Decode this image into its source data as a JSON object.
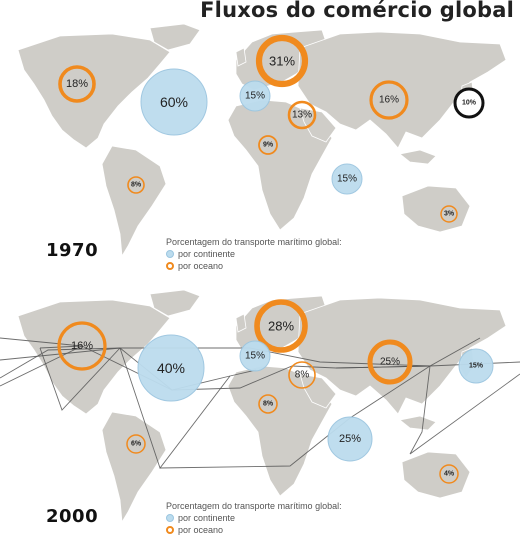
{
  "title": "Fluxos do comércio global",
  "legend": {
    "title": "Porcentagem do transporte marítimo global:",
    "continent": "por continente",
    "ocean": "por oceano"
  },
  "colors": {
    "land": "#cfcdc8",
    "continent_fill": "#bcdcee",
    "continent_stroke": "#9cc6e0",
    "ocean_ring": "#f08a1e",
    "route": "#555555"
  },
  "maps": [
    {
      "year": "1970",
      "bubbles": [
        {
          "label": "18%",
          "kind": "ocean",
          "value": 18,
          "region": "North Atlantic (North America)"
        },
        {
          "label": "31%",
          "kind": "ocean",
          "value": 31,
          "region": "Northern Europe"
        },
        {
          "label": "60%",
          "kind": "continent",
          "value": 60,
          "region": "Atlantic / Europe"
        },
        {
          "label": "15%",
          "kind": "continent",
          "value": 15,
          "region": "Mediterranean"
        },
        {
          "label": "13%",
          "kind": "ocean",
          "value": 13,
          "region": "Middle East"
        },
        {
          "label": "16%",
          "kind": "ocean",
          "value": 16,
          "region": "Asia"
        },
        {
          "label": "10%",
          "kind": "highlight",
          "value": 10,
          "region": "Japan"
        },
        {
          "label": "9%",
          "kind": "ocean",
          "value": 9,
          "region": "Red Sea"
        },
        {
          "label": "15%",
          "kind": "continent",
          "value": 15,
          "region": "Indian Ocean"
        },
        {
          "label": "8%",
          "kind": "ocean",
          "value": 8,
          "region": "South America"
        },
        {
          "label": "3%",
          "kind": "ocean",
          "value": 3,
          "region": "Australia"
        }
      ]
    },
    {
      "year": "2000",
      "bubbles": [
        {
          "label": "16%",
          "kind": "ocean",
          "value": 16,
          "region": "North America"
        },
        {
          "label": "28%",
          "kind": "ocean",
          "value": 28,
          "region": "Europe"
        },
        {
          "label": "40%",
          "kind": "continent",
          "value": 40,
          "region": "Atlantic"
        },
        {
          "label": "15%",
          "kind": "continent",
          "value": 15,
          "region": "Mediterranean"
        },
        {
          "label": "8%",
          "kind": "ocean",
          "value": 8,
          "region": "Middle East"
        },
        {
          "label": "25%",
          "kind": "ocean",
          "value": 25,
          "region": "Asia"
        },
        {
          "label": "15%",
          "kind": "continent",
          "value": 15,
          "region": "Pacific"
        },
        {
          "label": "8%",
          "kind": "ocean",
          "value": 8,
          "region": "Red Sea"
        },
        {
          "label": "25%",
          "kind": "continent",
          "value": 25,
          "region": "Indian Ocean"
        },
        {
          "label": "6%",
          "kind": "ocean",
          "value": 6,
          "region": "South America"
        },
        {
          "label": "4%",
          "kind": "ocean",
          "value": 4,
          "region": "Australia"
        }
      ]
    }
  ]
}
